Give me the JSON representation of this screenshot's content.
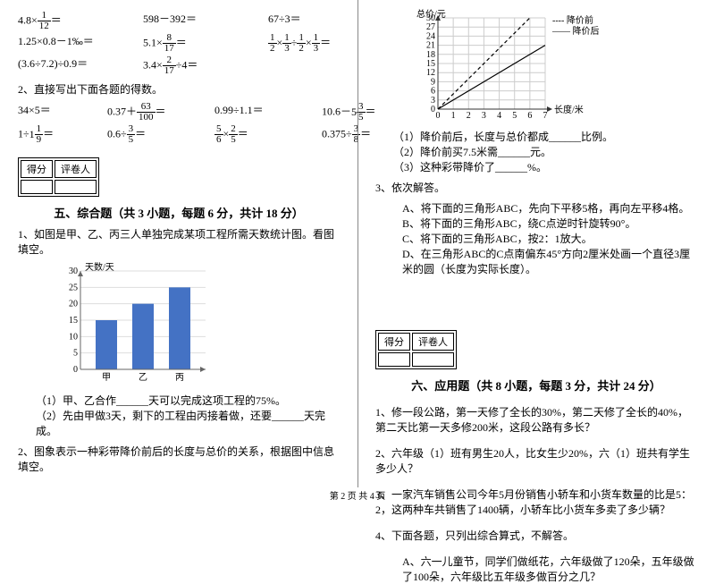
{
  "footer": "第 2 页 共 4 页",
  "left": {
    "eq_block1": [
      [
        "4.8×<1/12>＝",
        "598－392＝",
        "67÷3＝"
      ],
      [
        "1.25×0.8－1‰＝",
        "5.1×<8/17>＝",
        "<1/2>×<1/3>÷<1/2>×<1/3>＝"
      ],
      [
        "(3.6÷7.2)÷0.9＝",
        "3.4×<2/17>÷4＝",
        ""
      ]
    ],
    "q2_title": "2、直接写出下面各题的得数。",
    "eq_block2": [
      [
        "34×5＝",
        "0.37＋<63/100>＝",
        "0.99÷1.1＝",
        "10.6－5<3/5>＝"
      ],
      [
        "1÷1<1/9>＝",
        "0.6÷<3/5>＝",
        "<5/6>×<2/5>＝",
        "0.375÷<3/8>＝"
      ]
    ],
    "score_box": {
      "c1": "得分",
      "c2": "评卷人"
    },
    "sec5_title": "五、综合题（共 3 小题，每题 6 分，共计 18 分）",
    "q5_1": "1、如图是甲、乙、丙三人单独完成某项工程所需天数统计图。看图填空。",
    "bar_chart": {
      "ylabel": "天数/天",
      "ymax": 30,
      "ystep": 5,
      "cats": [
        "甲",
        "乙",
        "丙"
      ],
      "vals": [
        15,
        20,
        25
      ],
      "bar_color": "#4472c4",
      "axis_color": "#666",
      "grid_color": "#ddd",
      "font": 10
    },
    "q5_1a": "（1）甲、乙合作______天可以完成这项工程的75%。",
    "q5_1b": "（2）先由甲做3天，剩下的工程由丙接着做，还要______天完成。",
    "q5_2": "2、图象表示一种彩带降价前后的长度与总价的关系，根据图中信息填空。"
  },
  "right": {
    "line_chart": {
      "ylabel": "总价/元",
      "xlabel": "长度/米",
      "legend1": "---- 降价前",
      "legend2": "—— 降价后",
      "xmax": 7,
      "ymax": 30,
      "ystep": 3,
      "before": [
        [
          0,
          0
        ],
        [
          6,
          30
        ]
      ],
      "after": [
        [
          0,
          0
        ],
        [
          7,
          21
        ]
      ],
      "axis_color": "#333",
      "grid_color": "#ccc",
      "line_color": "#000",
      "font": 10
    },
    "q2_1": "（1）降价前后，长度与总价都成______比例。",
    "q2_2": "（2）降价前买7.5米需______元。",
    "q2_3": "（3）这种彩带降价了______%。",
    "q3_title": "3、依次解答。",
    "q3_a": "A、将下面的三角形ABC，先向下平移5格，再向左平移4格。",
    "q3_b": "B、将下面的三角形ABC，绕C点逆时针旋转90°。",
    "q3_c": "C、将下面的三角形ABC，按2：1放大。",
    "q3_d": "D、在三角形ABC的C点南偏东45°方向2厘米处画一个直径3厘米的圆（长度为实际长度）。",
    "score_box": {
      "c1": "得分",
      "c2": "评卷人"
    },
    "sec6_title": "六、应用题（共 8 小题，每题 3 分，共计 24 分）",
    "q6_1": "1、修一段公路，第一天修了全长的30%，第二天修了全长的40%，第二天比第一天多修200米，这段公路有多长？",
    "q6_2": "2、六年级（1）班有男生20人，比女生少20%，六（1）班共有学生多少人？",
    "q6_3": "3、一家汽车销售公司今年5月份销售小轿车和小货车数量的比是5：2，这两种车共销售了1400辆，小轿车比小货车多卖了多少辆？",
    "q6_4": "4、下面各题，只列出综合算式，不解答。",
    "q6_4a": "A、六一儿童节，同学们做纸花，六年级做了120朵，五年级做了100朵，六年级比五年级多做百分之几？"
  }
}
